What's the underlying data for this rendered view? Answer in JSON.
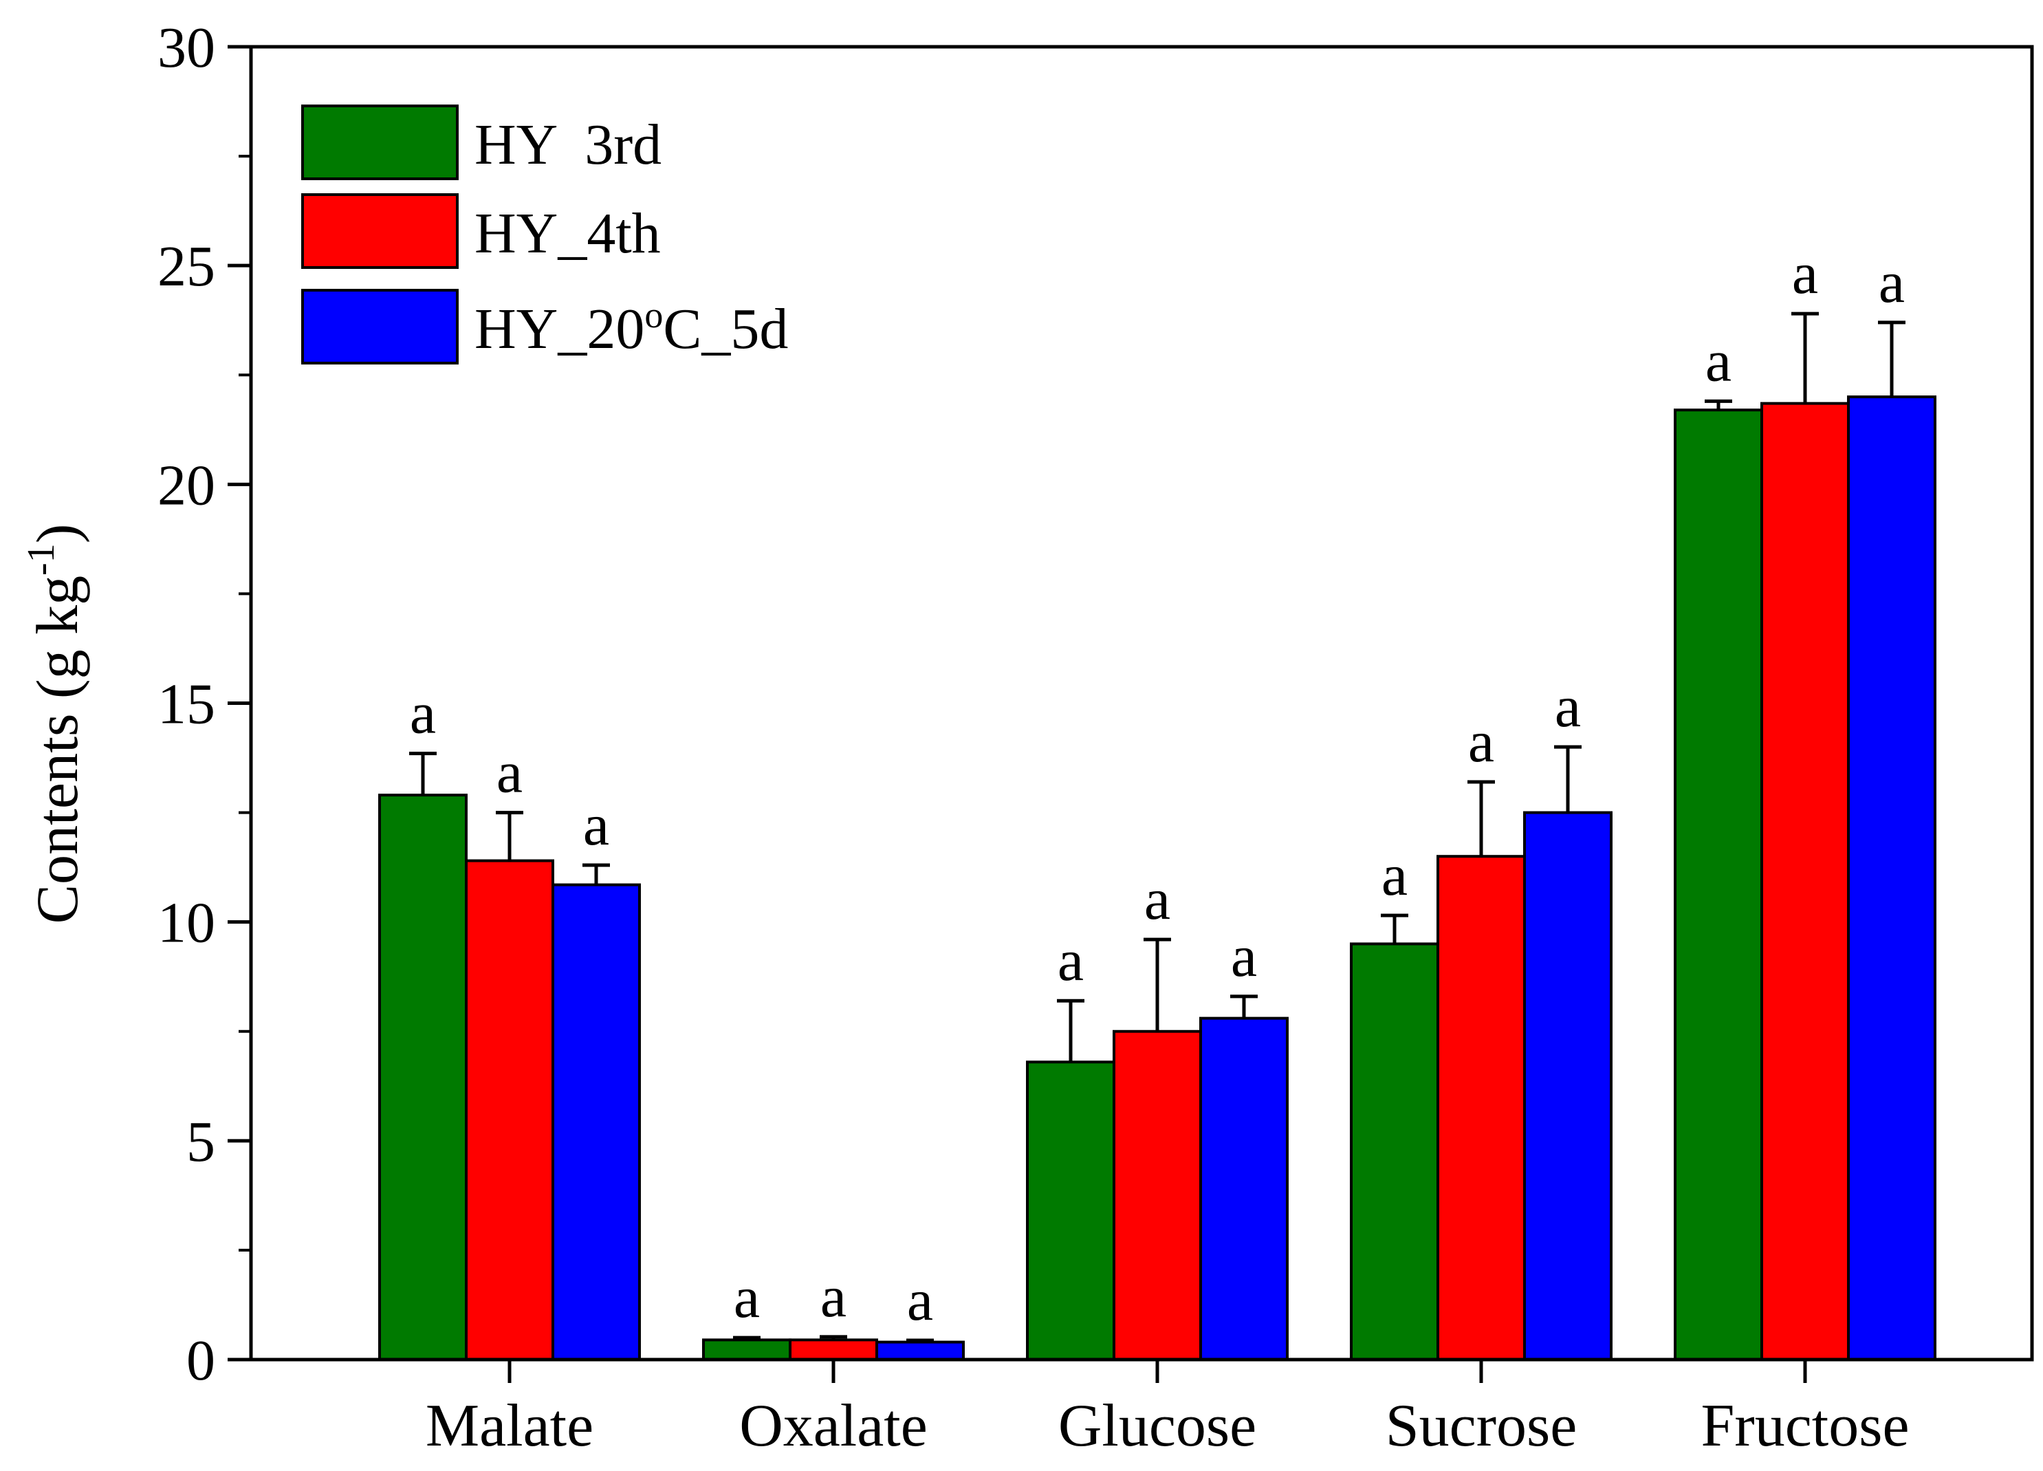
{
  "chart_data": {
    "type": "bar",
    "title": "",
    "xlabel": "",
    "ylabel": "Contents (g kg",
    "ylabel_superscript": "-1",
    "ylabel_close": ")",
    "ylim": [
      0,
      30
    ],
    "yticks": [
      0,
      5,
      10,
      15,
      20,
      25,
      30
    ],
    "grid": false,
    "legend_position": "top-left",
    "categories": [
      "Malate",
      "Oxalate",
      "Glucose",
      "Sucrose",
      "Fructose"
    ],
    "series": [
      {
        "name": "HY  3rd",
        "color": "#007a00",
        "values": [
          12.9,
          0.45,
          6.8,
          9.5,
          21.7
        ],
        "errors": [
          0.95,
          0.05,
          1.4,
          0.65,
          0.2
        ],
        "significance": [
          "a",
          "a",
          "a",
          "a",
          "a"
        ]
      },
      {
        "name": "HY_4th",
        "color": "#ff0000",
        "values": [
          11.4,
          0.45,
          7.5,
          11.5,
          21.85
        ],
        "errors": [
          1.1,
          0.07,
          2.1,
          1.7,
          2.05
        ],
        "significance": [
          "a",
          "a",
          "a",
          "a",
          "a"
        ]
      },
      {
        "name": "HY_20",
        "name_superscript": "o",
        "name_suffix": "C_5d",
        "color": "#0000ff",
        "values": [
          10.85,
          0.4,
          7.8,
          12.5,
          22.0
        ],
        "errors": [
          0.45,
          0.04,
          0.5,
          1.5,
          1.7
        ],
        "significance": [
          "a",
          "a",
          "a",
          "a",
          "a"
        ]
      }
    ]
  }
}
